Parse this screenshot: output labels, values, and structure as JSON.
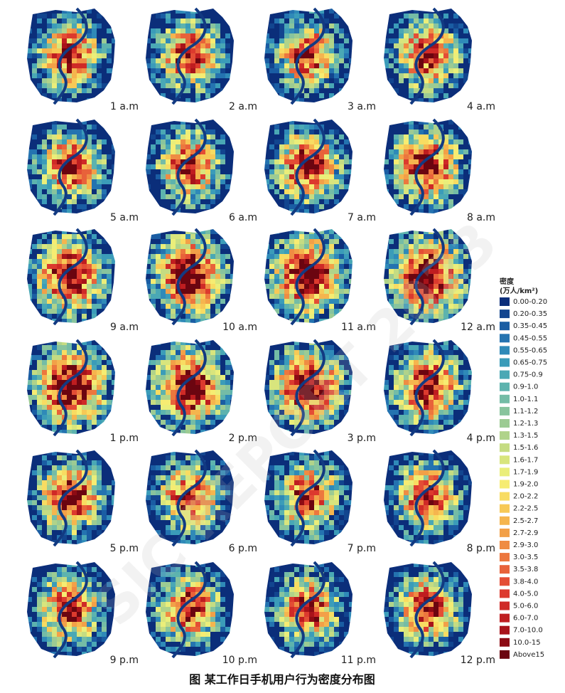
{
  "panels": [
    "1 a.m",
    "2 a.m",
    "3 a.m",
    "4 a.m",
    "5 a.m",
    "6 a.m",
    "7 a.m",
    "8 a.m",
    "9 a.m",
    "10 a.m",
    "11 a.m",
    "12 a.m",
    "1 p.m",
    "2 p.m",
    "3 p.m",
    "4 p.m",
    "5 p.m",
    "6 p.m",
    "7 p.m",
    "8 p.m",
    "9 p.m",
    "10 p.m",
    "11 p.m",
    "12 p.m"
  ],
  "legend": {
    "title": "密度",
    "unit": "(万人/km²)",
    "items": [
      {
        "label": "0.00-0.20",
        "color": "#0b2e7a"
      },
      {
        "label": "0.20-0.35",
        "color": "#12458f"
      },
      {
        "label": "0.35-0.45",
        "color": "#1a5da3"
      },
      {
        "label": "0.45-0.55",
        "color": "#2473b0"
      },
      {
        "label": "0.55-0.65",
        "color": "#2f8ab8"
      },
      {
        "label": "0.65-0.75",
        "color": "#3b9cb9"
      },
      {
        "label": "0.75-0.9",
        "color": "#4aa8b5"
      },
      {
        "label": "0.9-1.0",
        "color": "#5db3ae"
      },
      {
        "label": "1.0-1.1",
        "color": "#74bca6"
      },
      {
        "label": "1.1-1.2",
        "color": "#88c49d"
      },
      {
        "label": "1.2-1.3",
        "color": "#9ccb93"
      },
      {
        "label": "1.3-1.5",
        "color": "#b0d38a"
      },
      {
        "label": "1.5-1.6",
        "color": "#c5dc82"
      },
      {
        "label": "1.6-1.7",
        "color": "#d8e57d"
      },
      {
        "label": "1.7-1.9",
        "color": "#eaee7a"
      },
      {
        "label": "1.9-2.0",
        "color": "#f6ec72"
      },
      {
        "label": "2.0-2.2",
        "color": "#f8dc62"
      },
      {
        "label": "2.2-2.5",
        "color": "#f7c956"
      },
      {
        "label": "2.5-2.7",
        "color": "#f5b54e"
      },
      {
        "label": "2.7-2.9",
        "color": "#f2a048"
      },
      {
        "label": "2.9-3.0",
        "color": "#ef8c43"
      },
      {
        "label": "3.0-3.5",
        "color": "#ec773e"
      },
      {
        "label": "3.5-3.8",
        "color": "#e8623a"
      },
      {
        "label": "3.8-4.0",
        "color": "#e44d35"
      },
      {
        "label": "4.0-5.0",
        "color": "#dc3a2e"
      },
      {
        "label": "5.0-6.0",
        "color": "#cf2a27"
      },
      {
        "label": "6.0-7.0",
        "color": "#bf1d20"
      },
      {
        "label": "7.0-10.0",
        "color": "#a8131a"
      },
      {
        "label": "10.0-15",
        "color": "#8d0b14"
      },
      {
        "label": "Above15",
        "color": "#6b0510"
      }
    ]
  },
  "caption": "图 某工作日手机用户行为密度分布图",
  "watermark": "SIC REPORT 2023"
}
